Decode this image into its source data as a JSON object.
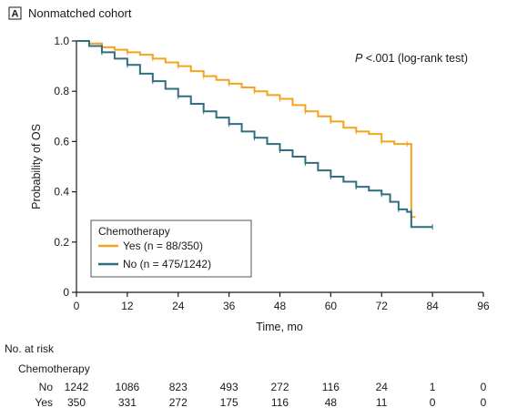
{
  "chart_data": {
    "type": "line",
    "panel_letter": "A",
    "title": "Nonmatched cohort",
    "annotation": "P <.001 (log-rank test)",
    "annotation_italic": "P",
    "annotation_rest": " <.001 (log-rank test)",
    "xlabel": "Time, mo",
    "ylabel": "Probability of OS",
    "xlim": [
      0,
      96
    ],
    "ylim": [
      0,
      1.0
    ],
    "x_ticks": [
      0,
      12,
      24,
      36,
      48,
      60,
      72,
      84,
      96
    ],
    "y_ticks": [
      0,
      0.2,
      0.4,
      0.6,
      0.8,
      1.0
    ],
    "x_tick_labels": [
      "0",
      "12",
      "24",
      "36",
      "48",
      "60",
      "72",
      "84",
      "96"
    ],
    "y_tick_labels": [
      "0",
      "0.2",
      "0.4",
      "0.6",
      "0.8",
      "1.0"
    ],
    "legend": {
      "title": "Chemotherapy",
      "placement": "bottom-left"
    },
    "series": [
      {
        "name": "Yes (n = 88/350)",
        "color": "#f5a31a",
        "points": [
          [
            0,
            1.0
          ],
          [
            3,
            0.99
          ],
          [
            6,
            0.975
          ],
          [
            9,
            0.965
          ],
          [
            12,
            0.955
          ],
          [
            15,
            0.945
          ],
          [
            18,
            0.93
          ],
          [
            21,
            0.915
          ],
          [
            24,
            0.9
          ],
          [
            27,
            0.88
          ],
          [
            30,
            0.86
          ],
          [
            33,
            0.845
          ],
          [
            36,
            0.83
          ],
          [
            39,
            0.815
          ],
          [
            42,
            0.8
          ],
          [
            45,
            0.785
          ],
          [
            48,
            0.77
          ],
          [
            51,
            0.745
          ],
          [
            54,
            0.72
          ],
          [
            57,
            0.7
          ],
          [
            60,
            0.68
          ],
          [
            63,
            0.655
          ],
          [
            66,
            0.64
          ],
          [
            69,
            0.63
          ],
          [
            72,
            0.6
          ],
          [
            75,
            0.59
          ],
          [
            78,
            0.59
          ],
          [
            79,
            0.59
          ],
          [
            79,
            0.3
          ],
          [
            80,
            0.3
          ]
        ]
      },
      {
        "name": "No (n = 475/1242)",
        "color": "#2f6e7e",
        "points": [
          [
            0,
            1.0
          ],
          [
            3,
            0.98
          ],
          [
            6,
            0.955
          ],
          [
            9,
            0.93
          ],
          [
            12,
            0.905
          ],
          [
            15,
            0.87
          ],
          [
            18,
            0.84
          ],
          [
            21,
            0.81
          ],
          [
            24,
            0.78
          ],
          [
            27,
            0.75
          ],
          [
            30,
            0.72
          ],
          [
            33,
            0.695
          ],
          [
            36,
            0.67
          ],
          [
            39,
            0.64
          ],
          [
            42,
            0.615
          ],
          [
            45,
            0.59
          ],
          [
            48,
            0.565
          ],
          [
            51,
            0.54
          ],
          [
            54,
            0.515
          ],
          [
            57,
            0.485
          ],
          [
            60,
            0.46
          ],
          [
            63,
            0.44
          ],
          [
            66,
            0.42
          ],
          [
            69,
            0.405
          ],
          [
            72,
            0.39
          ],
          [
            74,
            0.36
          ],
          [
            76,
            0.33
          ],
          [
            78,
            0.32
          ],
          [
            79,
            0.32
          ],
          [
            79,
            0.26
          ],
          [
            84,
            0.26
          ]
        ]
      }
    ],
    "risk_table": {
      "heading": "No. at risk",
      "subheading": "Chemotherapy",
      "timepoints": [
        0,
        12,
        24,
        36,
        48,
        60,
        72,
        84,
        96
      ],
      "rows": [
        {
          "label": "No",
          "values": [
            "1242",
            "1086",
            "823",
            "493",
            "272",
            "116",
            "24",
            "1",
            "0"
          ]
        },
        {
          "label": "Yes",
          "values": [
            "350",
            "331",
            "272",
            "175",
            "116",
            "48",
            "11",
            "0",
            "0"
          ]
        }
      ]
    }
  }
}
